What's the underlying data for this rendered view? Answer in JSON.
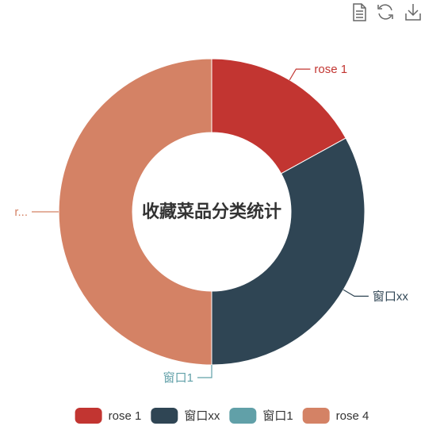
{
  "toolbar": {
    "items": [
      {
        "icon": "data-view-icon",
        "name": "data-view-button"
      },
      {
        "icon": "restore-icon",
        "name": "restore-button"
      },
      {
        "icon": "save-image-icon",
        "name": "save-image-button"
      }
    ]
  },
  "chart_data": {
    "type": "pie",
    "subtype": "donut",
    "title": "收藏菜品分类统计",
    "legend_position": "bottom",
    "slices": [
      {
        "name": "rose 1",
        "label": "rose 1",
        "value": 17,
        "color": "#c23531"
      },
      {
        "name": "窗口xx",
        "label": "窗口xx",
        "value": 33,
        "color": "#2f4554"
      },
      {
        "name": "窗口1",
        "label": "窗口1",
        "value": 0,
        "color": "#61a0a8"
      },
      {
        "name": "rose 4",
        "label": "r...",
        "value": 50,
        "color": "#d48265"
      }
    ]
  }
}
